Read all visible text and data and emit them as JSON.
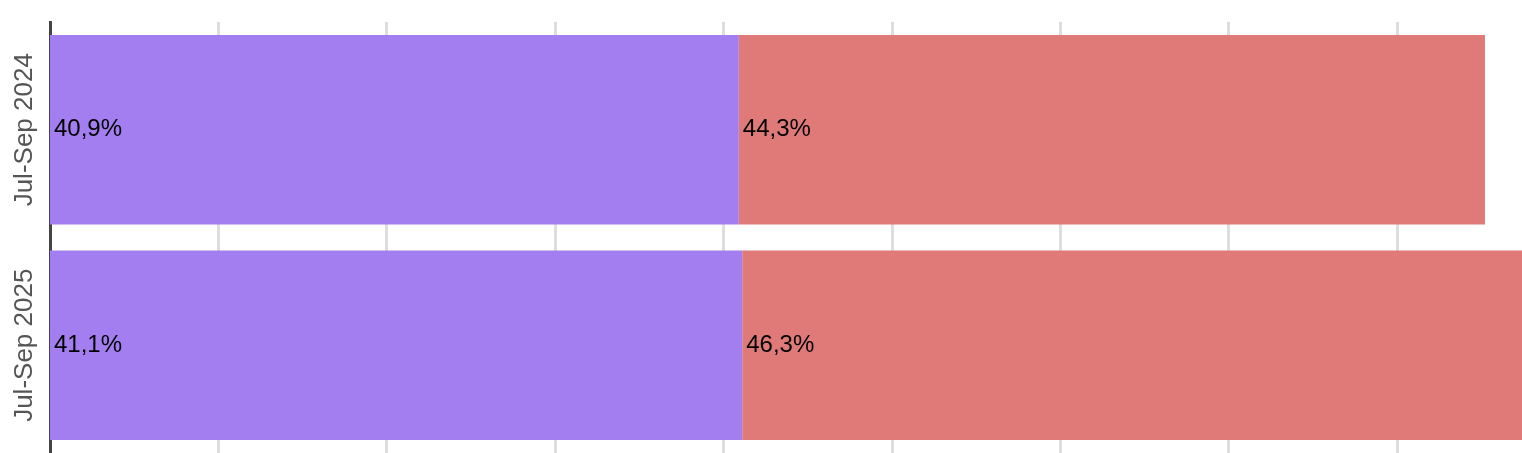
{
  "chart_data": {
    "type": "bar",
    "orientation": "horizontal",
    "stacked": true,
    "categories": [
      "Jul-Sep 2024",
      "Jul-Sep 2025"
    ],
    "series": [
      {
        "color": "#a37ef0",
        "values": [
          40.9,
          41.1
        ],
        "value_labels": [
          "40,9%",
          "41,1%"
        ]
      },
      {
        "color": "#df7a78",
        "values": [
          44.3,
          46.3
        ],
        "value_labels": [
          "44,3%",
          "46,3%"
        ]
      }
    ],
    "xlim": [
      0,
      87.4
    ],
    "xticks": [
      {
        "value": 10,
        "label": null
      },
      {
        "value": 20,
        "label": null
      },
      {
        "value": 30,
        "label": null
      },
      {
        "value": 40,
        "label": null
      },
      {
        "value": 50,
        "label": null
      },
      {
        "value": 60,
        "label": null
      },
      {
        "value": 70,
        "label": null
      },
      {
        "value": 80,
        "label": null
      }
    ],
    "grid": "x",
    "tick_labels": "y",
    "legend": false
  }
}
